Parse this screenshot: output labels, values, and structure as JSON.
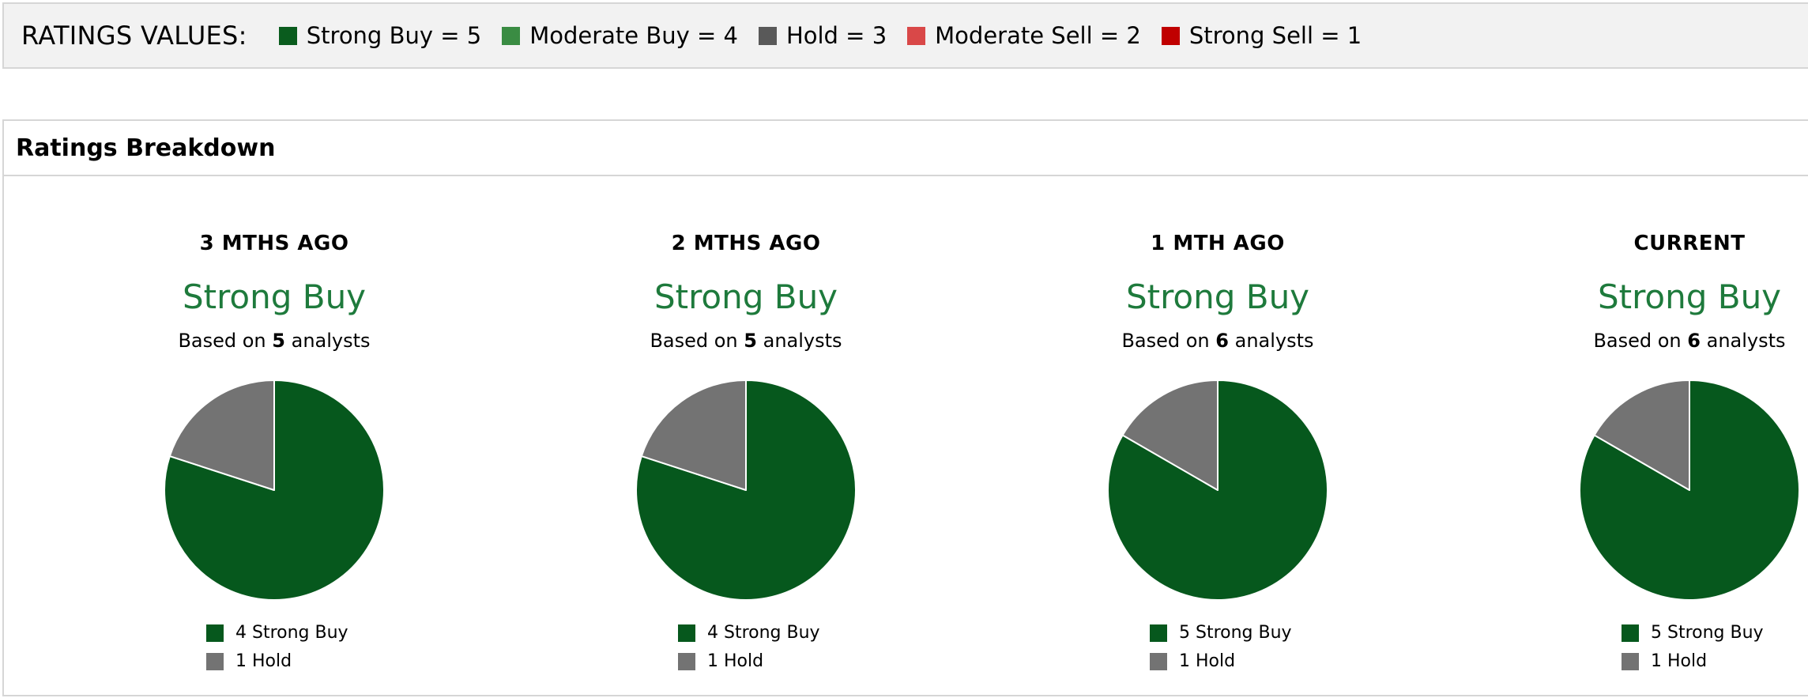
{
  "legend": {
    "title": "RATINGS VALUES:",
    "items": [
      {
        "label": "Strong Buy = 5",
        "color": "#0a5c1e"
      },
      {
        "label": "Moderate Buy = 4",
        "color": "#3a8c43"
      },
      {
        "label": "Hold = 3",
        "color": "#595959"
      },
      {
        "label": "Moderate Sell = 2",
        "color": "#d94848"
      },
      {
        "label": "Strong Sell = 1",
        "color": "#c00000"
      }
    ]
  },
  "panel": {
    "title": "Ratings Breakdown"
  },
  "colors": {
    "strong_buy": "#06581d",
    "hold": "#737373",
    "rating_text": "#1e7a3c"
  },
  "chart_data": [
    {
      "type": "pie",
      "title": "3 MTHS AGO",
      "rating": "Strong Buy",
      "analysts_prefix": "Based on",
      "analysts": "5",
      "analysts_suffix": "analysts",
      "slices": [
        {
          "label": "Strong Buy",
          "value": 4,
          "legend": "4 Strong Buy",
          "color": "#06581d"
        },
        {
          "label": "Hold",
          "value": 1,
          "legend": "1 Hold",
          "color": "#737373"
        }
      ]
    },
    {
      "type": "pie",
      "title": "2 MTHS AGO",
      "rating": "Strong Buy",
      "analysts_prefix": "Based on",
      "analysts": "5",
      "analysts_suffix": "analysts",
      "slices": [
        {
          "label": "Strong Buy",
          "value": 4,
          "legend": "4 Strong Buy",
          "color": "#06581d"
        },
        {
          "label": "Hold",
          "value": 1,
          "legend": "1 Hold",
          "color": "#737373"
        }
      ]
    },
    {
      "type": "pie",
      "title": "1 MTH AGO",
      "rating": "Strong Buy",
      "analysts_prefix": "Based on",
      "analysts": "6",
      "analysts_suffix": "analysts",
      "slices": [
        {
          "label": "Strong Buy",
          "value": 5,
          "legend": "5 Strong Buy",
          "color": "#06581d"
        },
        {
          "label": "Hold",
          "value": 1,
          "legend": "1 Hold",
          "color": "#737373"
        }
      ]
    },
    {
      "type": "pie",
      "title": "CURRENT",
      "rating": "Strong Buy",
      "analysts_prefix": "Based on",
      "analysts": "6",
      "analysts_suffix": "analysts",
      "slices": [
        {
          "label": "Strong Buy",
          "value": 5,
          "legend": "5 Strong Buy",
          "color": "#06581d"
        },
        {
          "label": "Hold",
          "value": 1,
          "legend": "1 Hold",
          "color": "#737373"
        }
      ]
    }
  ]
}
